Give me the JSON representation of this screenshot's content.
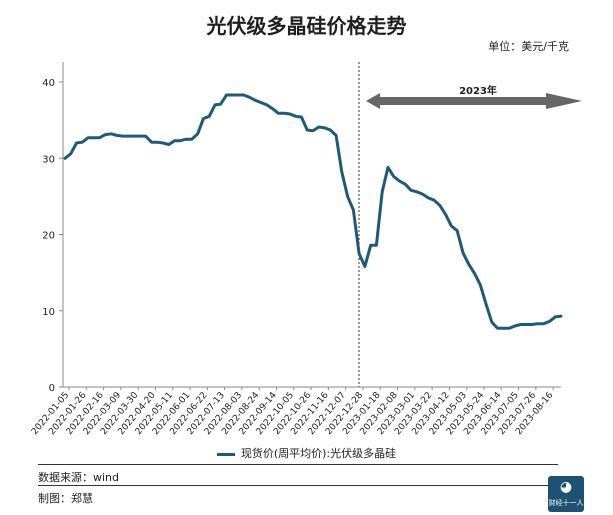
{
  "title": "光伏级多晶硅价格走势",
  "unit": "单位：美元/千克",
  "source": "数据来源：wind",
  "maker": "制图：郑慧",
  "logo_text": "财经十一人",
  "colors": {
    "line": "#1f5a7a",
    "arrow": "#666666",
    "axis": "#888888"
  },
  "chart_data": {
    "type": "line",
    "ylim": [
      0,
      40
    ],
    "yticks": [
      0,
      10,
      20,
      30,
      40
    ],
    "xticks": [
      "2022-01-05",
      "2022-01-26",
      "2022-02-16",
      "2022-03-09",
      "2022-03-30",
      "2022-04-20",
      "2022-05-11",
      "2022-06-01",
      "2022-06-22",
      "2022-07-13",
      "2022-08-03",
      "2022-08-24",
      "2022-09-14",
      "2022-10-05",
      "2022-10-26",
      "2022-11-16",
      "2022-12-07",
      "2022-12-28",
      "2023-01-18",
      "2023-02-08",
      "2023-03-01",
      "2023-03-22",
      "2023-04-12",
      "2023-05-03",
      "2023-05-24",
      "2023-06-14",
      "2023-07-05",
      "2023-07-26",
      "2023-08-16"
    ],
    "annotation": "2023年",
    "legend": "现货价(周平均价):光伏级多晶硅",
    "series": [
      {
        "name": "现货价(周平均价):光伏级多晶硅",
        "values": [
          30.0,
          30.6,
          32.0,
          32.1,
          32.7,
          32.7,
          32.7,
          33.1,
          33.2,
          33.0,
          32.9,
          32.9,
          32.9,
          32.9,
          32.9,
          32.1,
          32.1,
          32.0,
          31.8,
          32.3,
          32.3,
          32.5,
          32.5,
          33.2,
          35.2,
          35.5,
          37.0,
          37.1,
          38.3,
          38.3,
          38.3,
          38.3,
          38.0,
          37.6,
          37.3,
          37.0,
          36.5,
          35.9,
          35.9,
          35.8,
          35.5,
          35.4,
          33.7,
          33.6,
          34.1,
          34.0,
          33.7,
          33.0,
          28.2,
          25.0,
          23.2,
          17.5,
          15.8,
          18.6,
          18.6,
          25.6,
          28.8,
          27.6,
          27.0,
          26.6,
          25.8,
          25.6,
          25.3,
          24.8,
          24.5,
          23.8,
          22.6,
          21.1,
          20.5,
          17.6,
          16.1,
          14.9,
          13.4,
          10.9,
          8.5,
          7.7,
          7.7,
          7.7,
          8.0,
          8.2,
          8.2,
          8.2,
          8.3,
          8.3,
          8.6,
          9.2,
          9.3
        ]
      }
    ]
  }
}
